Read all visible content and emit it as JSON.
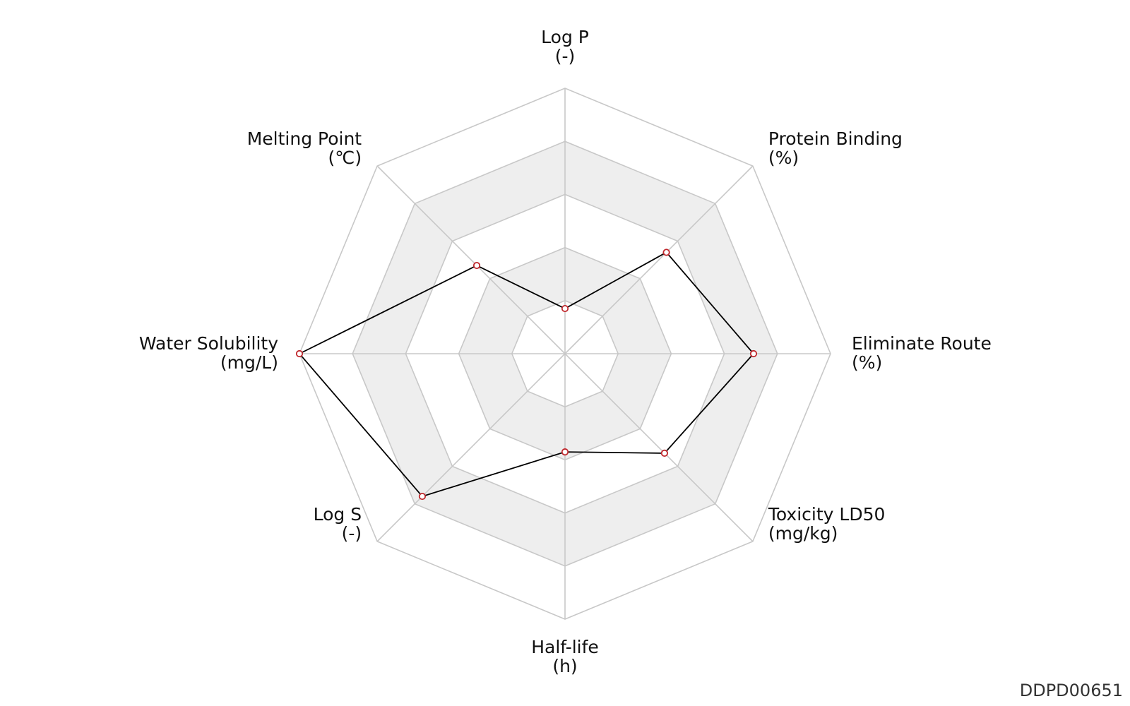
{
  "chart_data": {
    "type": "radar",
    "axes": [
      {
        "name": "Log P",
        "unit": "(-)"
      },
      {
        "name": "Protein Binding",
        "unit": "(%)"
      },
      {
        "name": "Eliminate Route",
        "unit": "(%)"
      },
      {
        "name": "Toxicity LD50",
        "unit": "(mg/kg)"
      },
      {
        "name": "Half-life",
        "unit": "(h)"
      },
      {
        "name": "Log S",
        "unit": "(-)"
      },
      {
        "name": "Water Solubility",
        "unit": "(mg/L)"
      },
      {
        "name": "Melting Point",
        "unit": "(℃)"
      }
    ],
    "series": [
      {
        "values": [
          0.17,
          0.54,
          0.71,
          0.53,
          0.37,
          0.76,
          1.0,
          0.47
        ]
      }
    ],
    "range": [
      0,
      1
    ],
    "rings": 5,
    "grid": true,
    "colors": {
      "line": "#000000",
      "marker_edge": "#c0282d",
      "marker_fill": "#ffffff",
      "grid": "#c8c8c8",
      "band": "#eeeeee"
    }
  },
  "footer": {
    "id_text": "DDPD00651"
  }
}
